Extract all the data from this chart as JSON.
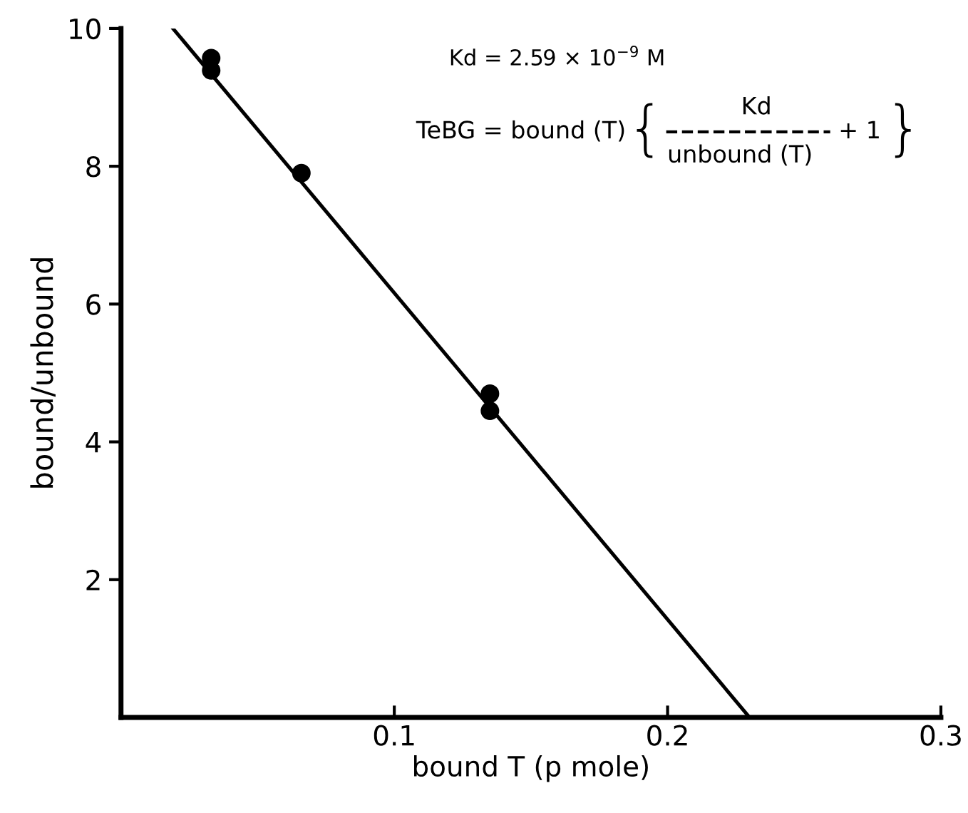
{
  "chart_data": {
    "type": "scatter",
    "xlabel": "bound T (p mole)",
    "ylabel": "bound/unbound",
    "xlim": [
      0,
      0.3
    ],
    "ylim": [
      0,
      10
    ],
    "xticks": [
      0.1,
      0.2,
      0.3
    ],
    "yticks": [
      2,
      4,
      6,
      8,
      10
    ],
    "grid": false,
    "legend": false,
    "series": [
      {
        "color": "#000000",
        "marker": "circle",
        "x": [
          0.033,
          0.033,
          0.066,
          0.135,
          0.135
        ],
        "values": [
          9.57,
          9.39,
          7.9,
          4.7,
          4.45
        ]
      },
      {
        "type": "line",
        "color": "#000000",
        "marker": "none",
        "line_style": "solid",
        "x": [
          0.019,
          0.23
        ],
        "values": [
          10,
          0
        ]
      }
    ],
    "annotations": [
      "Kd = 2.59 × 10$^{−9}$ M",
      "TeBG = bound (T)",
      "{",
      "Kd",
      "unbound (T)",
      "+ 1",
      "}"
    ]
  }
}
